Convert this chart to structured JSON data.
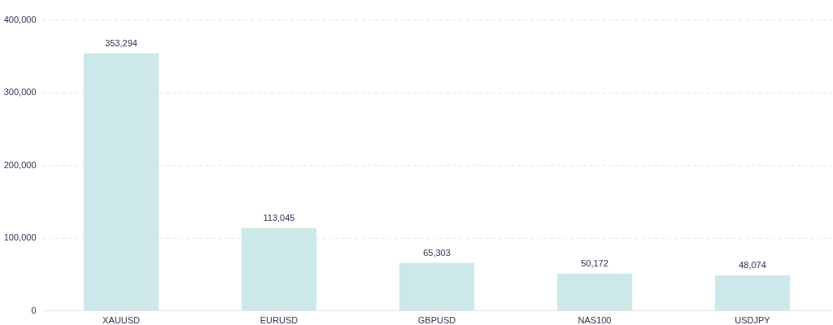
{
  "chart_data": {
    "type": "bar",
    "categories": [
      "XAUUSD",
      "EURUSD",
      "GBPUSD",
      "NAS100",
      "USDJPY"
    ],
    "values": [
      353294,
      113045,
      65303,
      50172,
      48074
    ],
    "value_labels": [
      "353,294",
      "113,045",
      "65,303",
      "50,172",
      "48,074"
    ],
    "color": "#cde8e8",
    "ylim": [
      0,
      400000
    ],
    "yticks": [
      0,
      {
        "value": 100000,
        "label": "100,000"
      },
      {
        "value": 200000,
        "label": "200,000"
      },
      {
        "value": 300000,
        "label": "300,000"
      },
      {
        "value": 400000,
        "label": "400,000"
      }
    ],
    "grid": "y"
  }
}
